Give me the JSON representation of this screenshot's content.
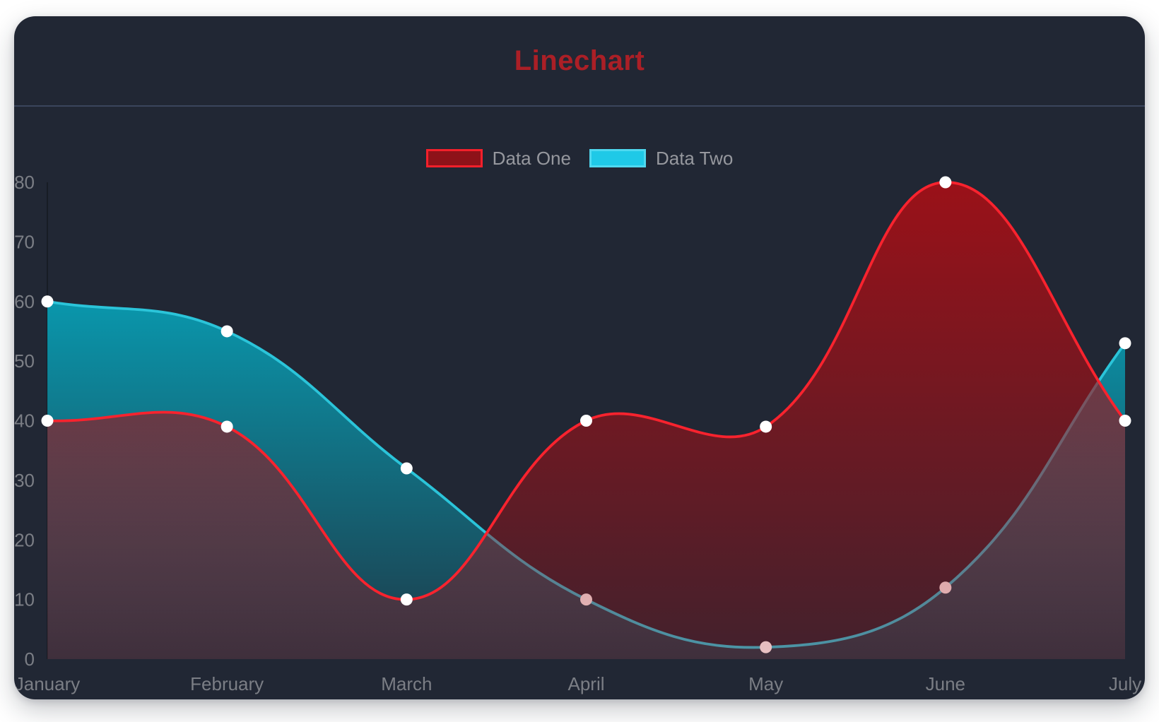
{
  "page": {
    "background": "#ffffff"
  },
  "card": {
    "background": "#212734",
    "title": "Linechart",
    "title_color": "#AB1F26",
    "divider_color": "#3A455C"
  },
  "legend": {
    "text_color": "#96989E",
    "items": [
      {
        "label": "Data One",
        "swatch_fill": "#8E1219",
        "swatch_border": "#F3202B"
      },
      {
        "label": "Data Two",
        "swatch_fill": "#1FC9E7",
        "swatch_border": "#4FD8EF"
      }
    ]
  },
  "chart_data": {
    "type": "line",
    "title": "Linechart",
    "categories": [
      "January",
      "February",
      "March",
      "April",
      "May",
      "June",
      "July"
    ],
    "series": [
      {
        "name": "Data One",
        "values": [
          40,
          39,
          10,
          40,
          39,
          80,
          40
        ],
        "line_color": "#F8232E",
        "fill_color": "#A50F16",
        "point_color": "#FFFFFF"
      },
      {
        "name": "Data Two",
        "values": [
          60,
          55,
          32,
          10,
          2,
          12,
          53
        ],
        "line_color": "#2BC4D9",
        "fill_color": "#00C5DE",
        "point_color": "#FFFFFF"
      }
    ],
    "xlabel": "",
    "ylabel": "",
    "ylim": [
      0,
      80
    ],
    "yticks": [
      0,
      10,
      20,
      30,
      40,
      50,
      60,
      70,
      80
    ],
    "grid": false,
    "legend_position": "top",
    "curve": "smooth bezier, tension 0.4",
    "axis_label_color": "#7B7E85"
  }
}
